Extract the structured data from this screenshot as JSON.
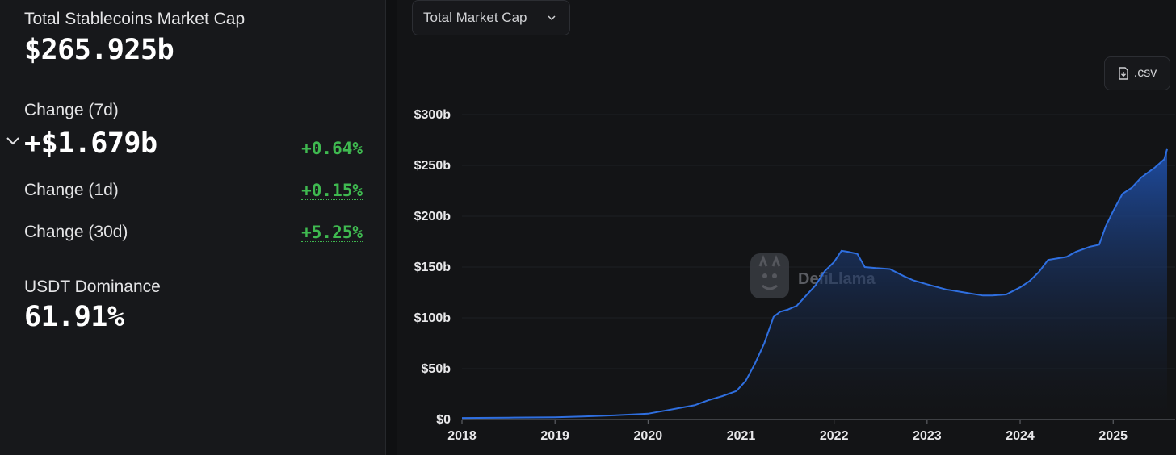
{
  "stats": {
    "total_label": "Total Stablecoins Market Cap",
    "total_value": "$265.925b",
    "change7d_label": "Change (7d)",
    "change7d_value": "+$1.679b",
    "change7d_pct": "+0.64%",
    "change1d_label": "Change (1d)",
    "change1d_pct": "+0.15%",
    "change30d_label": "Change (30d)",
    "change30d_pct": "+5.25%",
    "dominance_label": "USDT Dominance",
    "dominance_value": "61.91%"
  },
  "toolbar": {
    "dropdown_label": "Total Market Cap",
    "csv_label": ".csv"
  },
  "watermark": {
    "text": "DefiLlama"
  },
  "colors": {
    "positive": "#3fb950",
    "line": "#2f6fe0",
    "area_top": "#1f4fa8",
    "background": "#131416"
  },
  "icons": {
    "dropdown": "chevron-down-icon",
    "csv": "download-file-icon",
    "expand": "chevron-down-icon",
    "logo": "llama-logo-icon"
  },
  "chart_data": {
    "type": "area",
    "title": "",
    "xlabel": "",
    "ylabel": "",
    "ylim": [
      0,
      300
    ],
    "xlim": [
      2018.0,
      2025.58
    ],
    "y_ticks": [
      "$0",
      "$50b",
      "$100b",
      "$150b",
      "$200b",
      "$250b",
      "$300b"
    ],
    "y_tick_values": [
      0,
      50,
      100,
      150,
      200,
      250,
      300
    ],
    "x_ticks": [
      "2018",
      "2019",
      "2020",
      "2021",
      "2022",
      "2023",
      "2024",
      "2025"
    ],
    "x_tick_values": [
      2018,
      2019,
      2020,
      2021,
      2022,
      2023,
      2024,
      2025
    ],
    "grid": true,
    "series": [
      {
        "x": [
          2018.0,
          2018.5,
          2019.0,
          2019.3,
          2019.6,
          2019.9,
          2020.0,
          2020.2,
          2020.35,
          2020.5,
          2020.65,
          2020.8,
          2020.95,
          2021.05,
          2021.15,
          2021.25,
          2021.35,
          2021.42,
          2021.5,
          2021.6,
          2021.7,
          2021.8,
          2021.9,
          2022.0,
          2022.08,
          2022.15,
          2022.25,
          2022.33,
          2022.45,
          2022.6,
          2022.75,
          2022.85,
          2023.0,
          2023.2,
          2023.4,
          2023.6,
          2023.7,
          2023.85,
          2024.0,
          2024.1,
          2024.2,
          2024.3,
          2024.5,
          2024.6,
          2024.75,
          2024.85,
          2024.92,
          2025.0,
          2025.1,
          2025.2,
          2025.3,
          2025.45,
          2025.55,
          2025.58
        ],
        "values": [
          1.5,
          1.8,
          2.2,
          3.0,
          4.0,
          5.2,
          5.7,
          9.0,
          11.5,
          14.0,
          19.0,
          23.0,
          28.0,
          38.0,
          55.0,
          75.0,
          101.0,
          106.0,
          108.0,
          112.0,
          122.0,
          132.0,
          146.0,
          155.0,
          166.0,
          165.0,
          163.0,
          150.0,
          149.0,
          148.0,
          141.0,
          137.0,
          133.0,
          128.0,
          125.0,
          122.0,
          122.0,
          123.0,
          130.0,
          136.0,
          145.0,
          157.0,
          160.0,
          165.0,
          170.0,
          172.0,
          190.0,
          205.0,
          222.0,
          228.0,
          238.0,
          248.0,
          256.0,
          266.0
        ]
      }
    ]
  }
}
